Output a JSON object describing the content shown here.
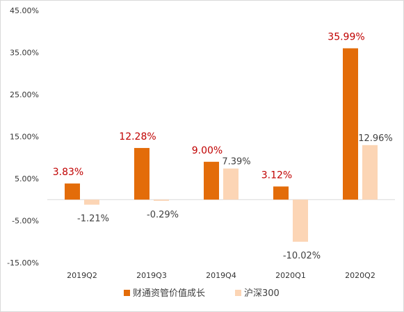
{
  "chart_data": {
    "type": "bar",
    "categories": [
      "2019Q2",
      "2019Q3",
      "2019Q4",
      "2020Q1",
      "2020Q2"
    ],
    "series": [
      {
        "name": "财通资管价值成长",
        "values": [
          3.83,
          12.28,
          9.0,
          3.12,
          35.99
        ],
        "labels": [
          "3.83%",
          "12.28%",
          "9.00%",
          "3.12%",
          "35.99%"
        ],
        "color": "#e36c09"
      },
      {
        "name": "沪深300",
        "values": [
          -1.21,
          -0.29,
          7.39,
          -10.02,
          12.96
        ],
        "labels": [
          "-1.21%",
          "-0.29%",
          "7.39%",
          "-10.02%",
          "12.96%"
        ],
        "color": "#fcd5b5"
      }
    ],
    "yticks": [
      45,
      35,
      25,
      15,
      5,
      -5,
      -15
    ],
    "ytick_labels": [
      "45.00%",
      "35.00%",
      "25.00%",
      "15.00%",
      "5.00%",
      "-5.00%",
      "-15.00%"
    ],
    "ylim": [
      -15,
      45
    ],
    "grid": false,
    "legend_position": "bottom",
    "title": "",
    "xlabel": "",
    "ylabel": ""
  }
}
